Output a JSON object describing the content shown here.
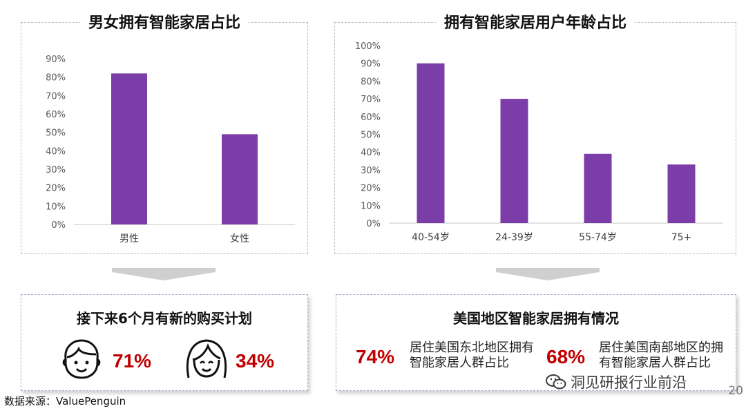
{
  "chart_data": [
    {
      "type": "bar",
      "title": "男女拥有智能家居占比",
      "categories": [
        "男性",
        "女性"
      ],
      "values": [
        0.82,
        0.49
      ],
      "ylim": [
        0,
        0.9
      ],
      "yticks": [
        "0%",
        "10%",
        "20%",
        "30%",
        "40%",
        "50%",
        "60%",
        "70%",
        "80%",
        "90%"
      ],
      "bar_color": "#7b3ea8",
      "grid": false
    },
    {
      "type": "bar",
      "title": "拥有智能家居用户年龄占比",
      "categories": [
        "40-54岁",
        "24-39岁",
        "55-74岁",
        "75+"
      ],
      "values": [
        0.9,
        0.7,
        0.39,
        0.33
      ],
      "ylim": [
        0,
        1.0
      ],
      "yticks": [
        "0%",
        "10%",
        "20%",
        "30%",
        "40%",
        "50%",
        "60%",
        "70%",
        "80%",
        "90%",
        "100%"
      ],
      "bar_color": "#7b3ea8",
      "grid": false
    }
  ],
  "purchase_plan": {
    "title": "接下来6个月有新的购买计划",
    "male_percent": "71%",
    "female_percent": "34%"
  },
  "us_region": {
    "title": "美国地区智能家居拥有情况",
    "northeast_percent": "74%",
    "northeast_desc_line1": "居住美国东北地区拥有",
    "northeast_desc_line2": "智能家居人群占比",
    "south_percent": "68%",
    "south_desc_line1": "居住美国南部地区的拥",
    "south_desc_line2": "有智能家居人群占比"
  },
  "footer": {
    "source": "数据来源：ValuePenguin",
    "watermark": "洞见研报行业前沿",
    "page_number": "20"
  },
  "colors": {
    "bar": "#7b3ea8",
    "highlight": "#c00000",
    "axis": "#d9d9d9",
    "tick_text": "#595959"
  }
}
